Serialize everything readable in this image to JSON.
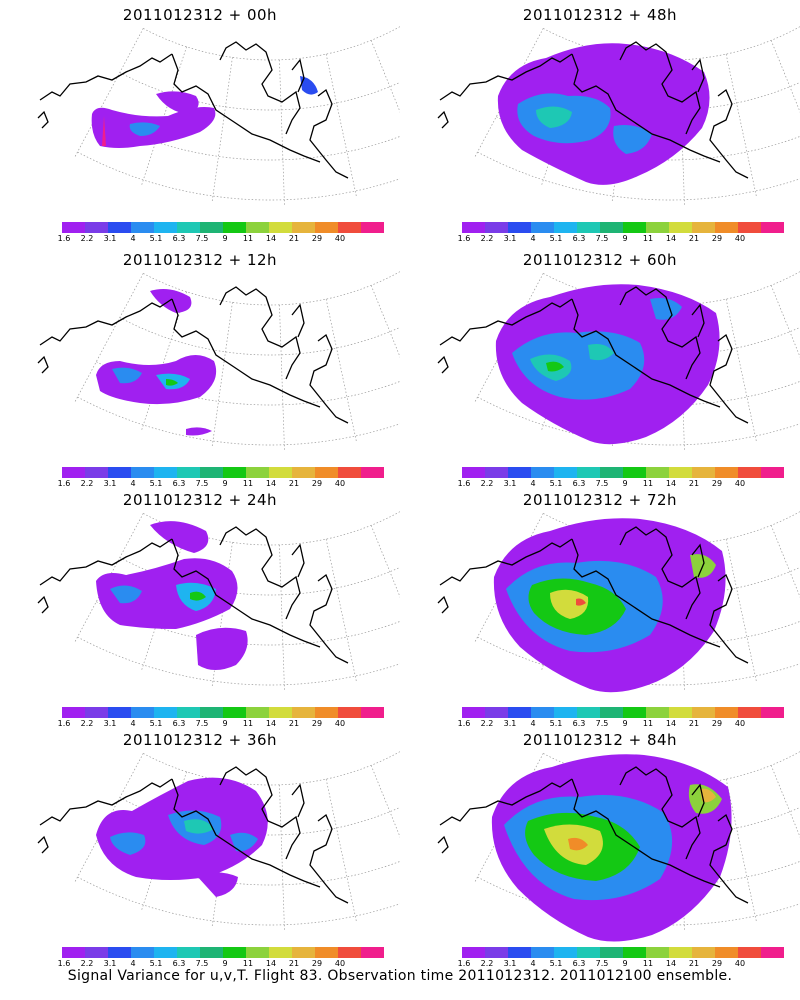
{
  "caption": "Signal Variance for u,v,T. Flight 83. Observation time 2011012312. 2011012100 ensemble.",
  "colorbar": {
    "labels": [
      "1.6",
      "2.2",
      "3.1",
      "4",
      "5.1",
      "6.3",
      "7.5",
      "9",
      "11",
      "14",
      "21",
      "29",
      "40"
    ],
    "colors": [
      "#a020f0",
      "#7a3ce8",
      "#2a4cf0",
      "#2a8cf0",
      "#1eb4f0",
      "#1ec8b4",
      "#1eb474",
      "#14c814",
      "#8cd23c",
      "#d2dc3c",
      "#e6b43c",
      "#f08c28",
      "#f04c3c",
      "#f01e8c"
    ]
  },
  "panels": [
    {
      "title": "2011012312 + 00h",
      "hours": 0
    },
    {
      "title": "2011012312 + 48h",
      "hours": 48
    },
    {
      "title": "2011012312 + 12h",
      "hours": 12
    },
    {
      "title": "2011012312 + 60h",
      "hours": 60
    },
    {
      "title": "2011012312 + 24h",
      "hours": 24
    },
    {
      "title": "2011012312 + 72h",
      "hours": 72
    },
    {
      "title": "2011012312 + 36h",
      "hours": 36
    },
    {
      "title": "2011012312 + 84h",
      "hours": 84
    }
  ]
}
